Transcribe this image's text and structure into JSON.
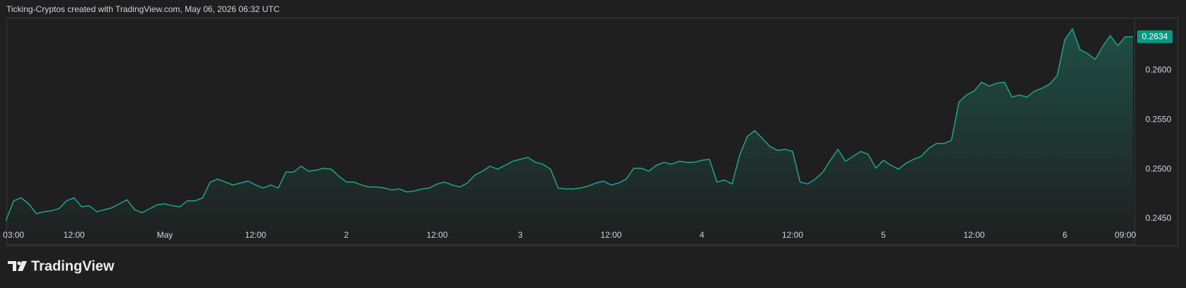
{
  "header": {
    "title": "Ticking-Cryptos created with TradingView.com, May 06, 2026 06:32 UTC"
  },
  "brand": {
    "name": "TradingView"
  },
  "chart_data": {
    "type": "area",
    "color": "#1ea58a",
    "categories": [
      null,
      "03:00",
      null,
      null,
      null,
      null,
      null,
      null,
      null,
      "12:00",
      null,
      null,
      null,
      null,
      null,
      null,
      null,
      null,
      null,
      null,
      null,
      "May",
      null,
      null,
      null,
      null,
      null,
      null,
      null,
      null,
      null,
      null,
      null,
      "12:00",
      null,
      null,
      null,
      null,
      null,
      null,
      null,
      null,
      null,
      null,
      null,
      "2",
      null,
      null,
      null,
      null,
      null,
      null,
      null,
      null,
      null,
      null,
      null,
      "12:00",
      null,
      null,
      null,
      null,
      null,
      null,
      null,
      null,
      null,
      null,
      "3",
      null,
      null,
      null,
      null,
      null,
      null,
      null,
      null,
      null,
      null,
      null,
      "12:00",
      null,
      null,
      null,
      null,
      null,
      null,
      null,
      null,
      null,
      null,
      null,
      "4",
      null,
      null,
      null,
      null,
      null,
      null,
      null,
      null,
      null,
      null,
      null,
      "12:00",
      null,
      null,
      null,
      null,
      null,
      null,
      null,
      null,
      null,
      null,
      null,
      "5",
      null,
      null,
      null,
      null,
      null,
      null,
      null,
      null,
      null,
      null,
      null,
      "12:00",
      null,
      null,
      null,
      null,
      null,
      null,
      null,
      null,
      null,
      null,
      null,
      "6",
      null,
      null,
      null,
      null,
      null,
      null,
      null,
      "09:00",
      null
    ],
    "values": [
      0.2448,
      0.2468,
      0.2471,
      0.2465,
      0.2455,
      0.2457,
      0.2458,
      0.246,
      0.2468,
      0.2471,
      0.2462,
      0.2463,
      0.2457,
      0.2459,
      0.2461,
      0.2465,
      0.2469,
      0.2459,
      0.2456,
      0.246,
      0.2464,
      0.2465,
      0.2463,
      0.2462,
      0.2468,
      0.2468,
      0.2471,
      0.2487,
      0.249,
      0.2487,
      0.2484,
      0.2486,
      0.2488,
      0.2484,
      0.2481,
      0.2484,
      0.2481,
      0.2497,
      0.2497,
      0.2503,
      0.2498,
      0.2499,
      0.2501,
      0.25,
      0.2493,
      0.2487,
      0.2487,
      0.2484,
      0.2482,
      0.2482,
      0.2481,
      0.2479,
      0.248,
      0.2477,
      0.2478,
      0.248,
      0.2481,
      0.2485,
      0.2487,
      0.2484,
      0.2482,
      0.2486,
      0.2494,
      0.2498,
      0.2503,
      0.25,
      0.2504,
      0.2508,
      0.251,
      0.2512,
      0.2507,
      0.2505,
      0.25,
      0.2481,
      0.248,
      0.248,
      0.2481,
      0.2483,
      0.2486,
      0.2488,
      0.2484,
      0.2486,
      0.249,
      0.2501,
      0.2501,
      0.2498,
      0.2504,
      0.2507,
      0.2505,
      0.2508,
      0.2507,
      0.2507,
      0.2509,
      0.251,
      0.2487,
      0.2489,
      0.2485,
      0.2514,
      0.2533,
      0.2539,
      0.2531,
      0.2523,
      0.2519,
      0.252,
      0.2518,
      0.2487,
      0.2485,
      0.249,
      0.2497,
      0.2509,
      0.252,
      0.2508,
      0.2513,
      0.2518,
      0.2515,
      0.2501,
      0.2509,
      0.2504,
      0.25,
      0.2506,
      0.251,
      0.2513,
      0.2521,
      0.2526,
      0.2526,
      0.2529,
      0.2568,
      0.2575,
      0.2579,
      0.2588,
      0.2584,
      0.2587,
      0.2588,
      0.2573,
      0.2575,
      0.2573,
      0.2579,
      0.2582,
      0.2586,
      0.2595,
      0.2631,
      0.2642,
      0.2621,
      0.2617,
      0.2611,
      0.2624,
      0.2635,
      0.2625,
      0.2634,
      0.2634
    ],
    "ylim": [
      0.2424,
      0.2652
    ],
    "yticks": [
      {
        "value": 0.245,
        "label": "0.2450"
      },
      {
        "value": 0.25,
        "label": "0.2500"
      },
      {
        "value": 0.255,
        "label": "0.2550"
      },
      {
        "value": 0.26,
        "label": "0.2600"
      }
    ],
    "last_value_color": "#089981"
  }
}
